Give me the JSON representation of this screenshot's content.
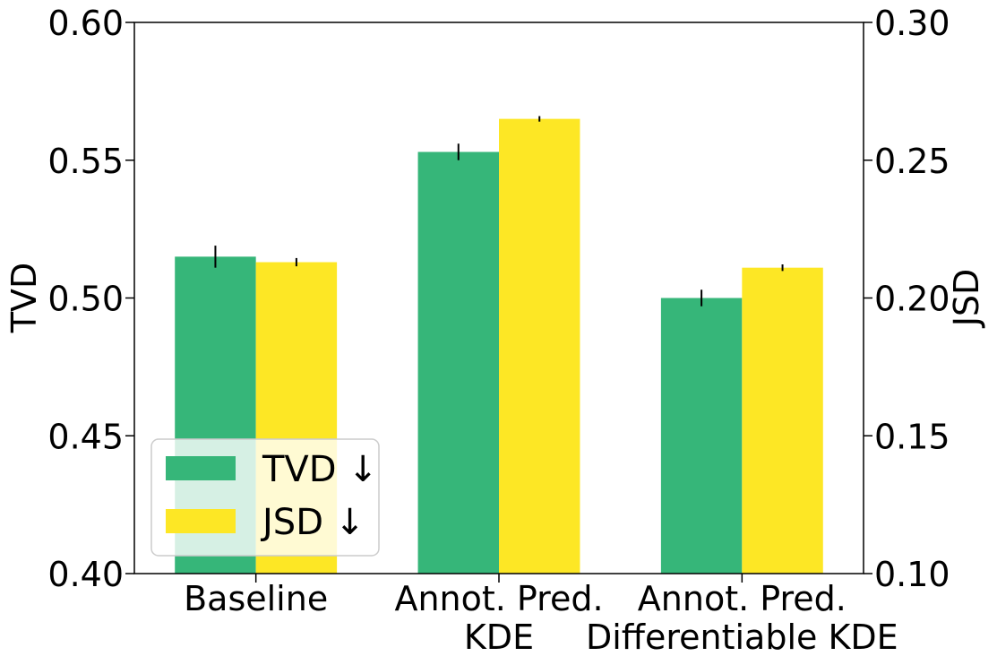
{
  "chart_data": {
    "type": "bar",
    "categories": [
      [
        "Baseline"
      ],
      [
        "Annot. Pred.",
        "KDE"
      ],
      [
        "Annot. Pred.",
        "Differentiable KDE"
      ]
    ],
    "series": [
      {
        "name": "TVD",
        "label": "TVD ↓",
        "axis": "left",
        "color": "#36b679",
        "values": [
          0.515,
          0.553,
          0.5
        ],
        "errors": [
          0.004,
          0.003,
          0.003
        ]
      },
      {
        "name": "JSD",
        "label": "JSD ↓",
        "axis": "right",
        "color": "#fde725",
        "values": [
          0.213,
          0.265,
          0.211
        ],
        "errors": [
          0.0015,
          0.001,
          0.0012
        ]
      }
    ],
    "left_axis": {
      "label": "TVD",
      "ylim": [
        0.4,
        0.6
      ],
      "ticks": [
        "0.40",
        "0.45",
        "0.50",
        "0.55",
        "0.60"
      ]
    },
    "right_axis": {
      "label": "JSD",
      "ylim": [
        0.1,
        0.3
      ],
      "ticks": [
        "0.10",
        "0.15",
        "0.20",
        "0.25",
        "0.30"
      ]
    },
    "legend_position": "lower-left",
    "grid": false
  }
}
